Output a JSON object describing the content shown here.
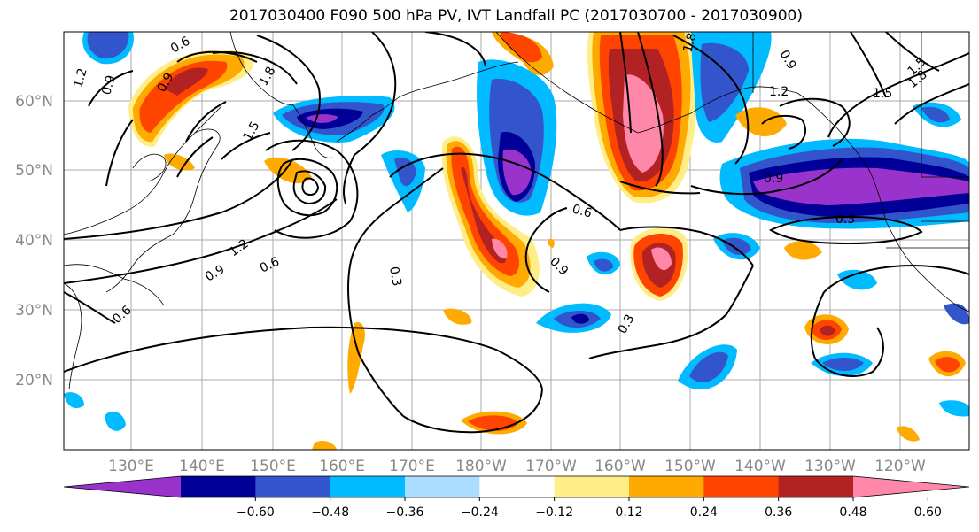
{
  "title": "2017030400 F090 500 hPa PV, IVT Landfall PC (2017030700 - 2017030900)",
  "lat_labels": [
    "60°N",
    "50°N",
    "40°N",
    "30°N",
    "20°N"
  ],
  "lon_labels": [
    "130°E",
    "140°E",
    "150°E",
    "160°E",
    "170°E",
    "180°W",
    "170°W",
    "160°W",
    "150°W",
    "140°W",
    "130°W",
    "120°W"
  ],
  "contour_labels": [
    "0.3",
    "0.3",
    "0.3",
    "0.6",
    "0.6",
    "0.6",
    "0.6",
    "0.9",
    "0.9",
    "0.9",
    "0.9",
    "0.9",
    "0.9",
    "1.2",
    "1.2",
    "1.2",
    "1.5",
    "1.5",
    "1.8",
    "1.8",
    "1.8",
    "1.5"
  ],
  "colorbar": {
    "colors": [
      "#9933cc",
      "#000099",
      "#3355cc",
      "#00bbff",
      "#aaddff",
      "#ffffff",
      "#ffee88",
      "#ffaa00",
      "#ff4400",
      "#b22222",
      "#ff88aa"
    ],
    "tick_labels": [
      "−0.60",
      "−0.48",
      "−0.36",
      "−0.24",
      "−0.12",
      "0.12",
      "0.24",
      "0.36",
      "0.48",
      "0.60"
    ]
  }
}
